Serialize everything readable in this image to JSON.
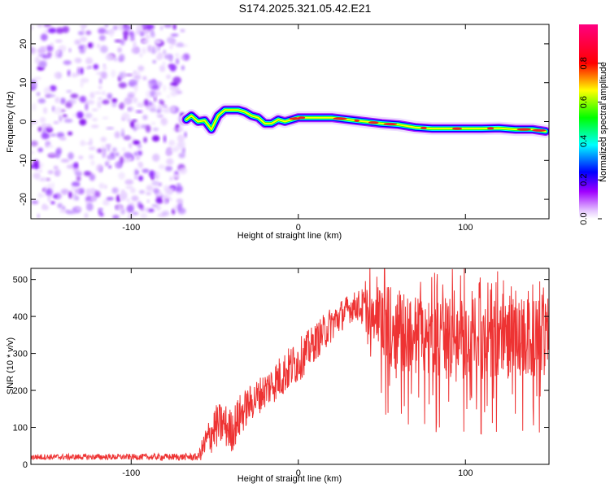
{
  "title": "S174.2025.321.05.42.E21",
  "chart_data": [
    {
      "type": "heatmap",
      "xlabel": "Height of straight line (km)",
      "ylabel": "Frequency (Hz)",
      "xlim": [
        -160,
        150
      ],
      "ylim": [
        -25,
        25
      ],
      "xticks": [
        -100,
        0,
        100
      ],
      "yticks": [
        -20,
        -10,
        0,
        10,
        20
      ],
      "noise_region_x": [
        -160,
        -67
      ],
      "ridge": {
        "x": [
          -67,
          -64,
          -60,
          -56,
          -52,
          -48,
          -44,
          -40,
          -36,
          -32,
          -28,
          -24,
          -20,
          -16,
          -12,
          -8,
          -4,
          0,
          4,
          10,
          20,
          30,
          40,
          50,
          60,
          70,
          80,
          90,
          100,
          110,
          120,
          130,
          140,
          148
        ],
        "freq": [
          0.5,
          1.5,
          0.0,
          0.3,
          -2.0,
          1.5,
          3.0,
          3.0,
          3.0,
          2.5,
          1.5,
          1.0,
          -0.5,
          -0.5,
          0.5,
          0.0,
          0.5,
          1.0,
          1.0,
          1.0,
          1.0,
          0.5,
          0.0,
          -0.5,
          -0.8,
          -1.5,
          -1.8,
          -1.8,
          -1.8,
          -1.8,
          -1.7,
          -2.0,
          -2.0,
          -2.5
        ]
      }
    },
    {
      "type": "colorbar",
      "label": "Normalized spectral amplitude",
      "range": [
        0.0,
        1.0
      ],
      "ticks": [
        0.0,
        0.2,
        0.4,
        0.6,
        0.8
      ],
      "tick_labels": [
        "0.0",
        "0.2",
        "0.4",
        "0.6",
        "0.8"
      ],
      "colors": [
        "#ffffff",
        "#a000ff",
        "#0000ff",
        "#00ffff",
        "#00ff00",
        "#ffff00",
        "#ff0000",
        "#ff0080"
      ]
    },
    {
      "type": "line",
      "xlabel": "Height of straight line (km)",
      "ylabel": "SNR (10 * v/v)",
      "xlim": [
        -160,
        150
      ],
      "ylim": [
        0,
        530
      ],
      "xticks": [
        -100,
        0,
        100
      ],
      "yticks": [
        0,
        100,
        200,
        300,
        400,
        500
      ],
      "color": "#ee3333",
      "envelope": {
        "x": [
          -160,
          -100,
          -60,
          -55,
          -50,
          -45,
          -40,
          -35,
          -30,
          -20,
          -10,
          0,
          10,
          20,
          30,
          35,
          40,
          45,
          50,
          60,
          80,
          100,
          120,
          140,
          150
        ],
        "mean": [
          20,
          20,
          20,
          60,
          100,
          110,
          90,
          130,
          160,
          200,
          240,
          280,
          330,
          380,
          420,
          430,
          420,
          410,
          390,
          360,
          340,
          340,
          340,
          340,
          340
        ],
        "amplitude": [
          8,
          8,
          10,
          50,
          60,
          60,
          60,
          60,
          50,
          50,
          60,
          60,
          50,
          50,
          40,
          40,
          60,
          80,
          100,
          110,
          110,
          110,
          110,
          110,
          110
        ]
      }
    }
  ]
}
